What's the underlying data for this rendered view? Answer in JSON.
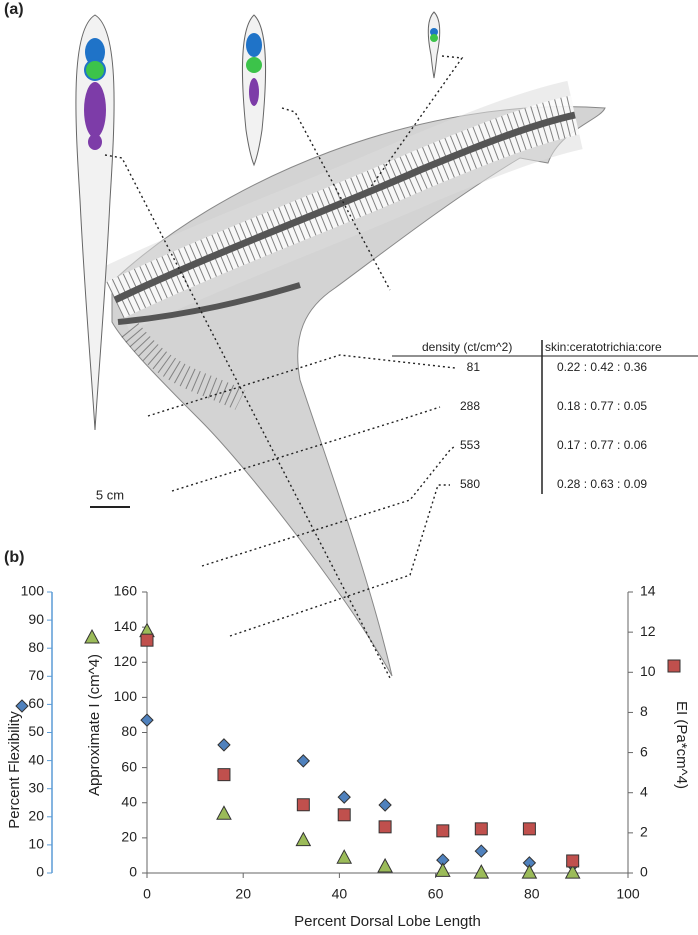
{
  "panel_labels": [
    "(a)",
    "(b)"
  ],
  "scale_bar": "5 cm",
  "table": {
    "headers": [
      "density (ct/cm^2)",
      "skin:ceratotrichia:core"
    ],
    "rows": [
      [
        "81",
        "0.22 : 0.42 : 0.36"
      ],
      [
        "288",
        "0.18 : 0.77 : 0.05"
      ],
      [
        "553",
        "0.17 : 0.77 : 0.06"
      ],
      [
        "580",
        "0.28 : 0.63 : 0.09"
      ]
    ]
  },
  "chart_data": {
    "type": "scatter",
    "xlabel": "Percent Dorsal Lobe Length",
    "x": [
      0,
      16,
      32.5,
      41,
      49.5,
      61.5,
      69.5,
      79.5,
      88.5
    ],
    "xlim": [
      0,
      100
    ],
    "xticks": [
      0,
      20,
      40,
      60,
      80,
      100
    ],
    "ylim": [
      0,
      100
    ],
    "yticks": [
      0,
      10,
      20,
      30,
      40,
      50,
      60,
      70,
      80,
      90,
      100
    ],
    "y2lim": [
      0,
      160
    ],
    "y2ticks": [
      0,
      20,
      40,
      60,
      80,
      100,
      120,
      140,
      160
    ],
    "y3lim": [
      0,
      14
    ],
    "y3ticks": [
      0,
      2,
      4,
      6,
      8,
      10,
      12,
      14
    ],
    "series": [
      {
        "name": "Percent Flexibility",
        "color": "#4f81bd",
        "marker": "diamond",
        "axis": "y",
        "values": [
          54.4,
          45.6,
          39.9,
          27.0,
          24.2,
          4.6,
          7.8,
          3.6,
          2.8
        ]
      },
      {
        "name": "Approximate I (cm^4)",
        "color": "#9bbb59",
        "marker": "triangle",
        "axis": "y2",
        "values": [
          138,
          34,
          19,
          9,
          4,
          1.5,
          0.5,
          0.5,
          0.5
        ]
      },
      {
        "name": "EI (Pa*cm^4)",
        "color": "#c0504d",
        "marker": "square",
        "axis": "y3",
        "values": [
          11.6,
          4.9,
          3.4,
          2.9,
          2.3,
          2.1,
          2.2,
          2.2,
          0.6
        ]
      }
    ]
  }
}
